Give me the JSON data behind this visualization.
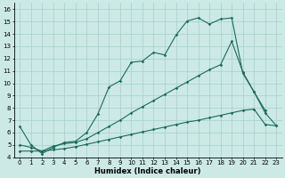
{
  "xlabel": "Humidex (Indice chaleur)",
  "background_color": "#cce9e5",
  "grid_color": "#aad4ce",
  "line_color": "#1a6b5a",
  "xlim": [
    -0.5,
    23.5
  ],
  "ylim": [
    4,
    16.5
  ],
  "x_ticks": [
    0,
    1,
    2,
    3,
    4,
    5,
    6,
    7,
    8,
    9,
    10,
    11,
    12,
    13,
    14,
    15,
    16,
    17,
    18,
    19,
    20,
    21,
    22,
    23
  ],
  "y_ticks": [
    4,
    5,
    6,
    7,
    8,
    9,
    10,
    11,
    12,
    13,
    14,
    15,
    16
  ],
  "line1_x": [
    0,
    1,
    2,
    3,
    4,
    5,
    6,
    7,
    8,
    9,
    10,
    11,
    12,
    13,
    14,
    15,
    16,
    17,
    18,
    19,
    20,
    21,
    22
  ],
  "line1_y": [
    6.5,
    5.0,
    4.3,
    4.8,
    5.2,
    5.3,
    6.0,
    7.5,
    9.7,
    10.2,
    11.7,
    11.8,
    12.5,
    12.3,
    13.9,
    15.05,
    15.3,
    14.8,
    15.2,
    15.3,
    10.8,
    9.3,
    7.8
  ],
  "line2_x": [
    0,
    1,
    2,
    3,
    4,
    5,
    6,
    7,
    8,
    9,
    10,
    11,
    12,
    13,
    14,
    15,
    16,
    17,
    18,
    19,
    20,
    21,
    22,
    23
  ],
  "line2_y": [
    4.5,
    4.5,
    4.5,
    4.6,
    4.7,
    4.85,
    5.05,
    5.25,
    5.45,
    5.65,
    5.85,
    6.05,
    6.25,
    6.45,
    6.65,
    6.85,
    7.0,
    7.2,
    7.4,
    7.6,
    7.8,
    7.9,
    6.65,
    6.55
  ],
  "line3_x": [
    0,
    1,
    2,
    3,
    4,
    5,
    6,
    7,
    8,
    9,
    10,
    11,
    12,
    13,
    14,
    15,
    16,
    17,
    18,
    19,
    20,
    21,
    22,
    23
  ],
  "line3_y": [
    5.0,
    4.8,
    4.5,
    4.9,
    5.1,
    5.2,
    5.5,
    6.0,
    6.5,
    7.0,
    7.6,
    8.1,
    8.6,
    9.1,
    9.6,
    10.1,
    10.6,
    11.1,
    11.5,
    13.4,
    10.9,
    9.3,
    7.6,
    6.55
  ]
}
